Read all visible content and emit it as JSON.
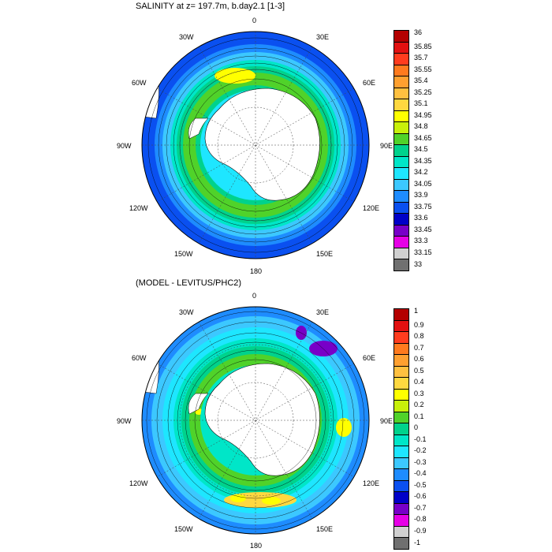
{
  "maps": [
    {
      "title": "SALINITY at z= 197.7m, b.day2.1 [1-3]",
      "lon_labels": {
        "n0": "0",
        "e30": "30E",
        "e60": "60E",
        "e90": "90E",
        "e120": "120E",
        "e150": "150E",
        "s180": "180",
        "w150": "150W",
        "w120": "120W",
        "w90": "90W",
        "w60": "60W",
        "w30": "30W"
      },
      "colorbar": {
        "labels": [
          "36",
          "35.85",
          "35.7",
          "35.55",
          "35.4",
          "35.25",
          "35.1",
          "34.95",
          "34.8",
          "34.65",
          "34.5",
          "34.35",
          "34.2",
          "34.05",
          "33.9",
          "33.75",
          "33.6",
          "33.45",
          "33.3",
          "33.15",
          "33"
        ],
        "colors": [
          "#b30000",
          "#e21111",
          "#ff3c1e",
          "#ff7a1e",
          "#ffa030",
          "#ffc040",
          "#ffd840",
          "#ffff00",
          "#c8f00a",
          "#50d22a",
          "#00d28c",
          "#00e6c8",
          "#1ee6ff",
          "#3cc8ff",
          "#1e8cff",
          "#0a50f0",
          "#0000c8",
          "#7800c8",
          "#e600e6",
          "#d0d0d0",
          "#707070"
        ]
      }
    },
    {
      "title": "(MODEL - LEVITUS/PHC2)",
      "lon_labels": {
        "n0": "0",
        "e30": "30E",
        "e60": "60E",
        "e90": "90E",
        "e120": "120E",
        "e150": "150E",
        "s180": "180",
        "w150": "150W",
        "w120": "120W",
        "w90": "90W",
        "w60": "60W",
        "w30": "30W"
      },
      "colorbar": {
        "labels": [
          "1",
          "0.9",
          "0.8",
          "0.7",
          "0.6",
          "0.5",
          "0.4",
          "0.3",
          "0.2",
          "0.1",
          "0",
          "-0.1",
          "-0.2",
          "-0.3",
          "-0.4",
          "-0.5",
          "-0.6",
          "-0.7",
          "-0.8",
          "-0.9",
          "-1"
        ],
        "colors": [
          "#b30000",
          "#e21111",
          "#ff3c1e",
          "#ff7a1e",
          "#ffa030",
          "#ffc040",
          "#ffd840",
          "#ffff00",
          "#c8f00a",
          "#50d22a",
          "#00d28c",
          "#00e6c8",
          "#1ee6ff",
          "#3cc8ff",
          "#1e8cff",
          "#0a50f0",
          "#0000c8",
          "#7800c8",
          "#e600e6",
          "#d0d0d0",
          "#707070"
        ]
      }
    }
  ]
}
